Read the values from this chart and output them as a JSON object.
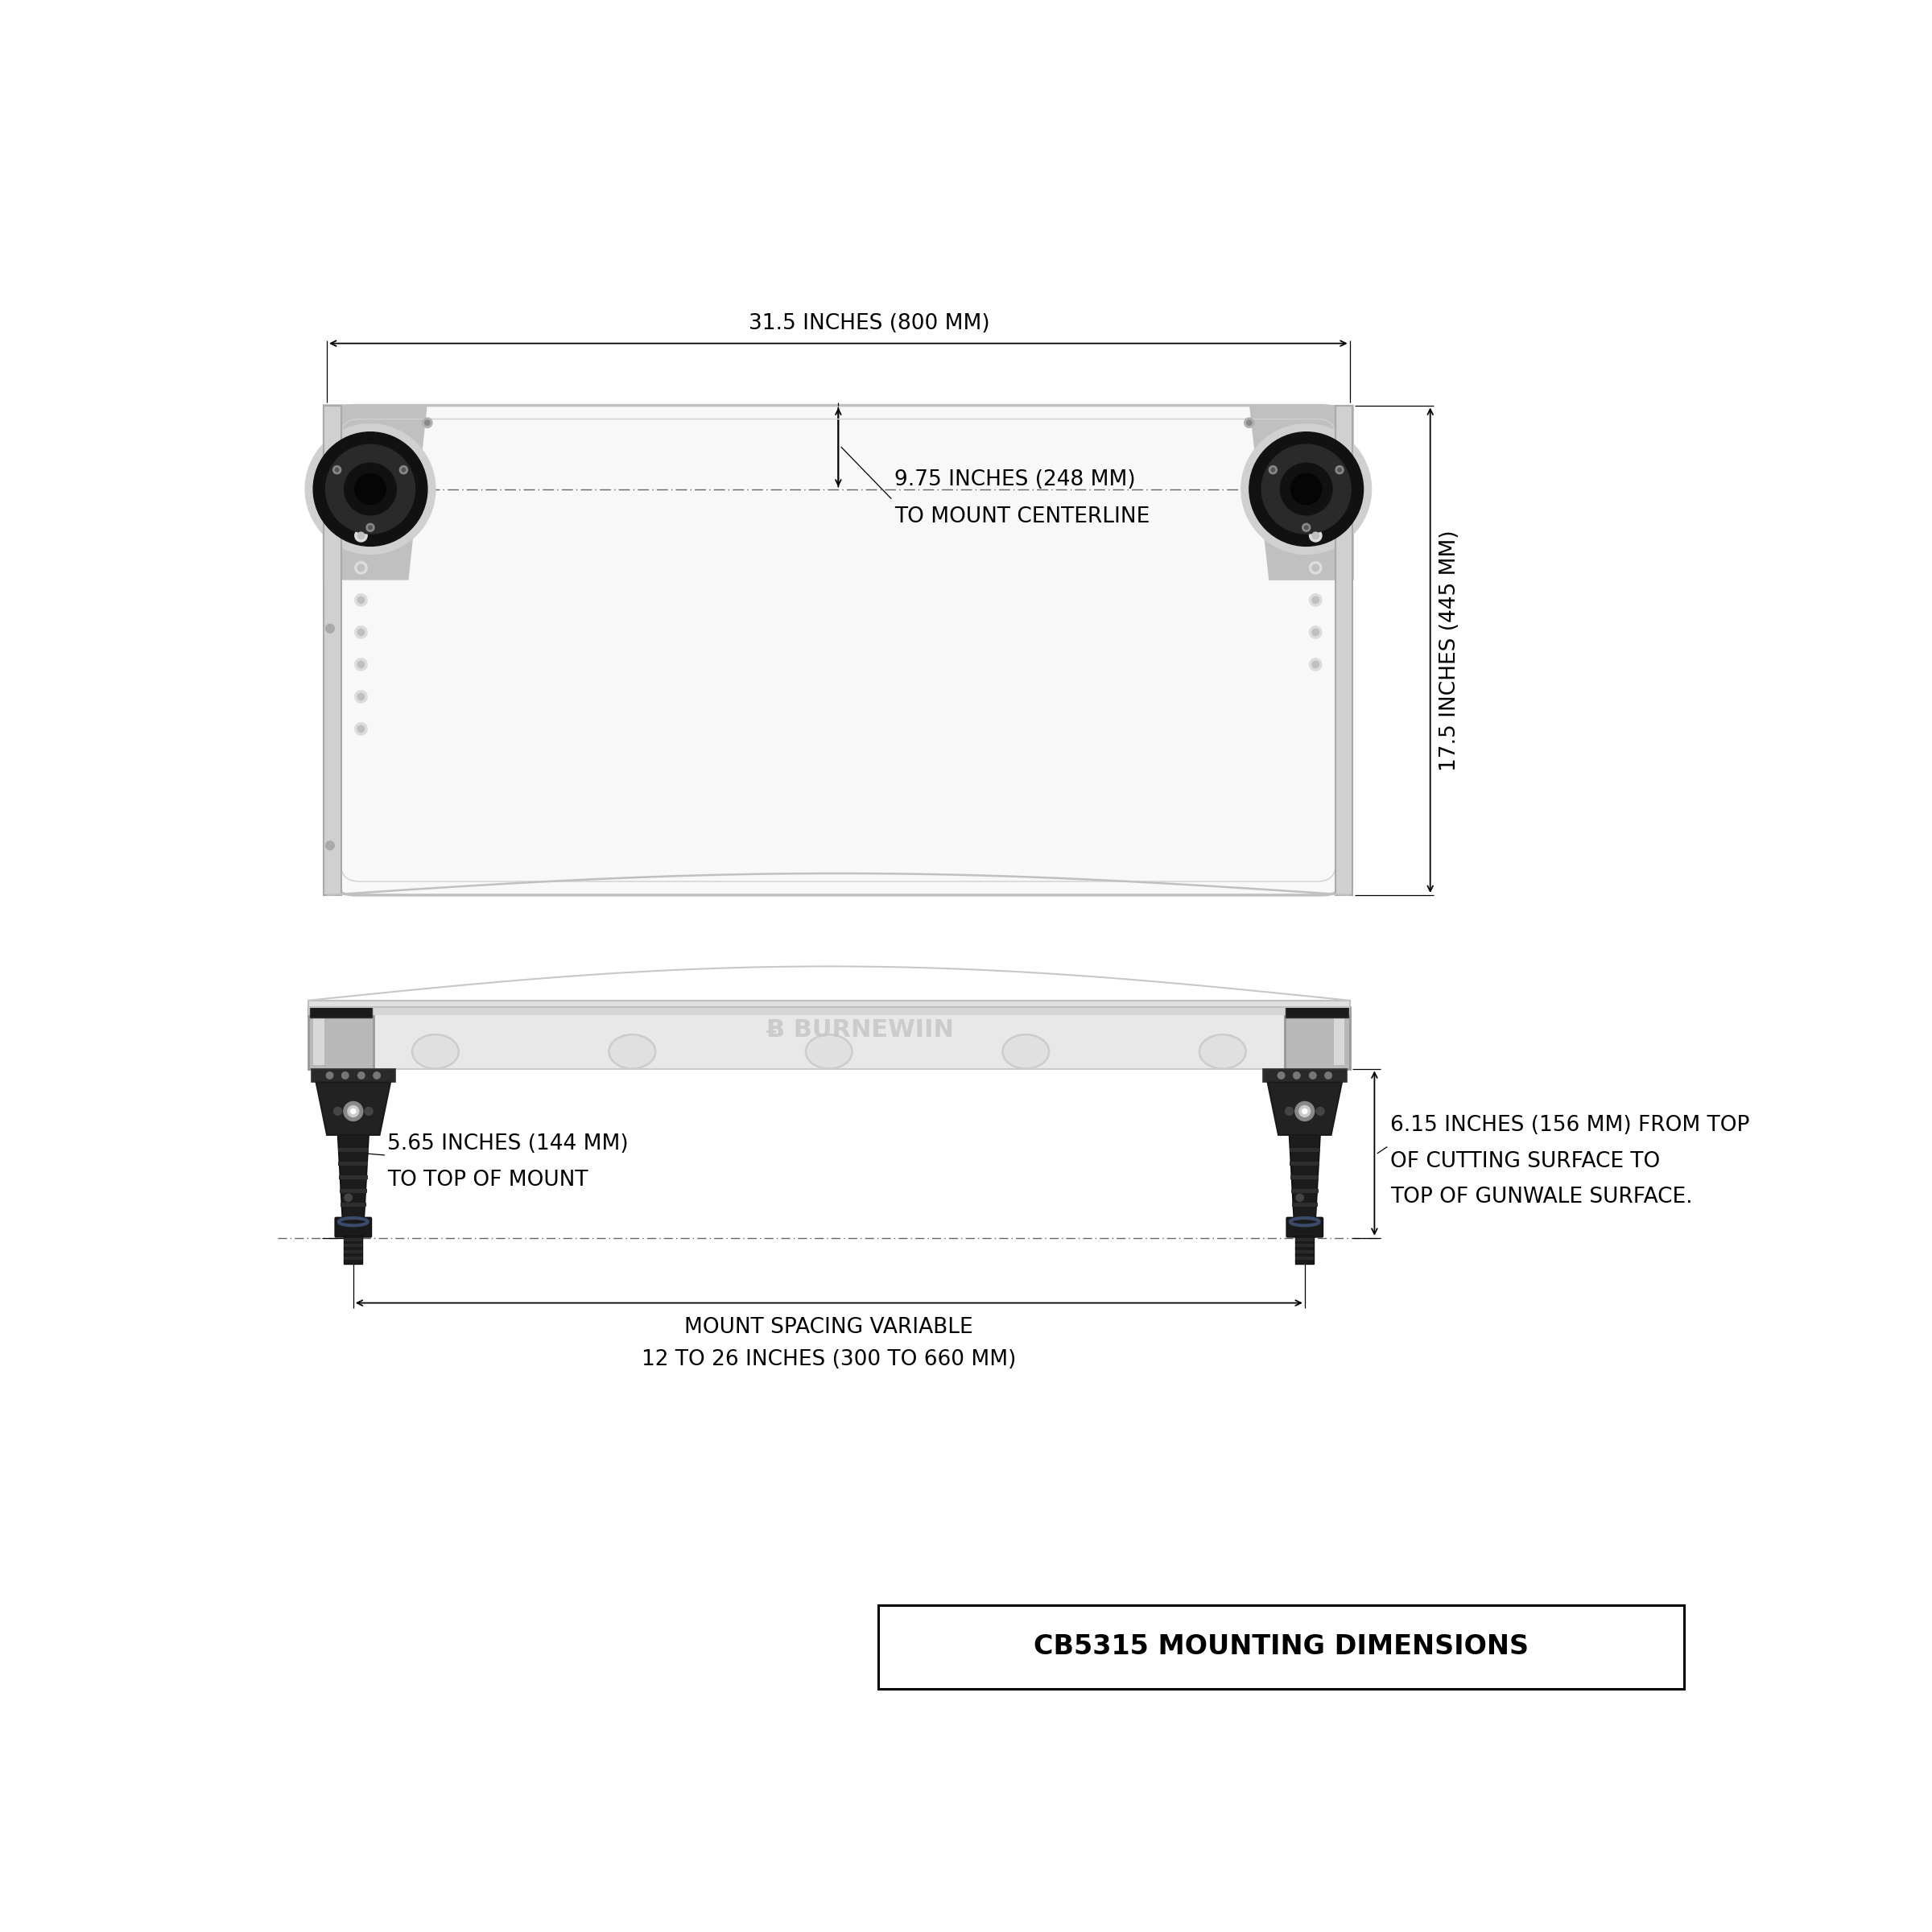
{
  "background_color": "#ffffff",
  "title": "CB5315 MOUNTING DIMENSIONS",
  "dim_width_text": "31.5 INCHES (800 MM)",
  "dim_height_text": "17.5 INCHES (445 MM)",
  "dim_centerline_text_1": "9.75 INCHES (248 MM)",
  "dim_centerline_text_2": "TO MOUNT CENTERLINE",
  "dim_mount_height_text_1": "5.65 INCHES (144 MM)",
  "dim_mount_height_text_2": "TO TOP OF MOUNT",
  "dim_spacing_text_1": "MOUNT SPACING VARIABLE",
  "dim_spacing_text_2": "12 TO 26 INCHES (300 TO 660 MM)",
  "dim_gunwale_text_1": "6.15 INCHES (156 MM) FROM TOP",
  "dim_gunwale_text_2": "OF CUTTING SURFACE TO",
  "dim_gunwale_text_3": "TOP OF GUNWALE SURFACE.",
  "line_color": "#000000",
  "board_fill_white": "#f8f8f8",
  "board_edge_gray": "#c0c0c0",
  "board_mid_gray": "#b8b8b8",
  "board_dark_gray": "#909090",
  "mount_black": "#111111",
  "mount_dark": "#1e1e1e",
  "mount_med": "#2d2d2d",
  "logo_gray": "#c8c8c8",
  "dim_color": "#000000",
  "label_fontsize": 19,
  "title_fontsize": 24
}
